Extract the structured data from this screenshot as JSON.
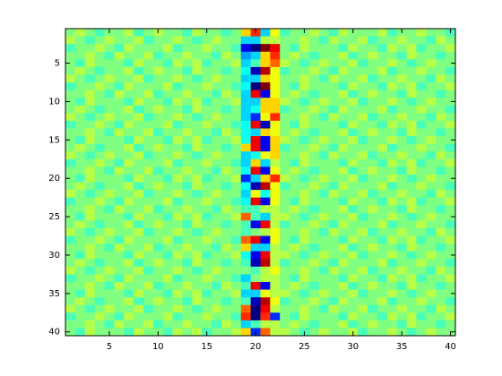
{
  "chart_data": {
    "type": "heatmap",
    "colormap": "jet",
    "zlim": [
      -9,
      9
    ],
    "xlim": [
      0.5,
      40.5
    ],
    "ylim": [
      0.5,
      40.5
    ],
    "y_reversed": true,
    "xticks": [
      5,
      10,
      15,
      20,
      25,
      30,
      35,
      40
    ],
    "yticks": [
      5,
      10,
      15,
      20,
      25,
      30,
      35,
      40
    ],
    "z": [
      [
        0,
        1,
        0,
        -1,
        0,
        0,
        1,
        -1,
        0,
        1,
        0,
        0,
        -1,
        1,
        0,
        0,
        -1,
        0,
        3,
        6,
        -3,
        2,
        -1,
        0,
        0,
        1,
        0,
        -1,
        1,
        0,
        0,
        0,
        1,
        -1,
        0,
        0,
        1,
        0,
        0,
        -1
      ],
      [
        1,
        0,
        -1,
        0,
        1,
        0,
        0,
        1,
        -1,
        0,
        0,
        1,
        0,
        -1,
        0,
        1,
        0,
        0,
        -3,
        -3,
        1,
        1,
        0,
        0,
        1,
        0,
        -1,
        1,
        0,
        0,
        1,
        -1,
        0,
        0,
        1,
        0,
        0,
        -1,
        1,
        0
      ],
      [
        -1,
        0,
        0,
        1,
        0,
        -1,
        1,
        0,
        0,
        0,
        1,
        -1,
        0,
        0,
        1,
        0,
        0,
        -1,
        -7,
        -9,
        9,
        7,
        0,
        -1,
        1,
        0,
        0,
        0,
        -1,
        1,
        0,
        0,
        -1,
        1,
        0,
        1,
        -1,
        0,
        0,
        1
      ],
      [
        0,
        0,
        1,
        0,
        -1,
        1,
        0,
        0,
        1,
        -1,
        0,
        0,
        1,
        0,
        0,
        -1,
        1,
        0,
        -4,
        -3,
        3,
        6,
        0,
        1,
        0,
        -1,
        0,
        0,
        1,
        -1,
        0,
        1,
        0,
        0,
        -1,
        1,
        0,
        0,
        -1,
        0
      ],
      [
        0,
        -1,
        1,
        0,
        0,
        0,
        -1,
        1,
        0,
        0,
        -1,
        1,
        0,
        1,
        -1,
        0,
        0,
        1,
        -3,
        -1,
        3,
        5,
        1,
        0,
        -1,
        0,
        1,
        0,
        0,
        1,
        -1,
        0,
        0,
        1,
        0,
        -1,
        0,
        1,
        0,
        0
      ],
      [
        0,
        1,
        0,
        -1,
        0,
        0,
        1,
        -1,
        0,
        1,
        0,
        0,
        -1,
        1,
        0,
        0,
        -1,
        0,
        -2,
        -8,
        8,
        2,
        -1,
        0,
        0,
        1,
        0,
        -1,
        1,
        0,
        0,
        0,
        1,
        -1,
        0,
        0,
        1,
        0,
        0,
        -1
      ],
      [
        1,
        0,
        -1,
        0,
        1,
        0,
        0,
        1,
        -1,
        0,
        0,
        1,
        0,
        -1,
        0,
        1,
        0,
        0,
        -3,
        -3,
        3,
        2,
        0,
        0,
        1,
        0,
        -1,
        1,
        0,
        0,
        1,
        -1,
        0,
        0,
        1,
        0,
        0,
        -1,
        1,
        0
      ],
      [
        -1,
        0,
        0,
        1,
        0,
        -1,
        1,
        0,
        0,
        0,
        1,
        -1,
        0,
        0,
        1,
        0,
        0,
        -1,
        -2,
        -9,
        9,
        2,
        0,
        -1,
        1,
        0,
        0,
        0,
        -1,
        1,
        0,
        0,
        -1,
        1,
        0,
        1,
        -1,
        0,
        0,
        1
      ],
      [
        0,
        0,
        1,
        0,
        -1,
        1,
        0,
        0,
        1,
        -1,
        0,
        0,
        1,
        0,
        0,
        -1,
        1,
        0,
        -3,
        7,
        -7,
        2,
        0,
        1,
        0,
        -1,
        0,
        0,
        1,
        -1,
        0,
        1,
        0,
        0,
        -1,
        1,
        0,
        0,
        -1,
        0
      ],
      [
        0,
        -1,
        1,
        0,
        0,
        0,
        -1,
        1,
        0,
        0,
        -1,
        1,
        0,
        1,
        -1,
        0,
        0,
        1,
        -3,
        -3,
        3,
        3,
        1,
        0,
        -1,
        0,
        1,
        0,
        0,
        1,
        -1,
        0,
        0,
        1,
        0,
        -1,
        0,
        1,
        0,
        0
      ],
      [
        0,
        1,
        0,
        -1,
        0,
        0,
        1,
        -1,
        0,
        1,
        0,
        0,
        -1,
        1,
        0,
        0,
        -1,
        0,
        -3,
        -2,
        3,
        3,
        -1,
        0,
        0,
        1,
        0,
        -1,
        1,
        0,
        0,
        0,
        1,
        -1,
        0,
        0,
        1,
        0,
        0,
        -1
      ],
      [
        1,
        0,
        -1,
        0,
        1,
        0,
        0,
        1,
        -1,
        0,
        0,
        1,
        0,
        -1,
        0,
        1,
        0,
        0,
        -3,
        -6,
        2,
        6,
        0,
        0,
        1,
        0,
        -1,
        1,
        0,
        0,
        1,
        -1,
        0,
        0,
        1,
        0,
        0,
        -1,
        1,
        0
      ],
      [
        -1,
        0,
        0,
        1,
        0,
        -1,
        1,
        0,
        0,
        0,
        1,
        -1,
        0,
        0,
        1,
        0,
        0,
        -1,
        -2,
        7,
        -8,
        2,
        0,
        -1,
        1,
        0,
        0,
        0,
        -1,
        1,
        0,
        0,
        -1,
        1,
        0,
        1,
        -1,
        0,
        0,
        1
      ],
      [
        0,
        0,
        1,
        0,
        -1,
        1,
        0,
        0,
        1,
        -1,
        0,
        0,
        1,
        0,
        0,
        -1,
        1,
        0,
        -2,
        -3,
        3,
        2,
        0,
        1,
        0,
        -1,
        0,
        0,
        1,
        -1,
        0,
        1,
        0,
        0,
        -1,
        1,
        0,
        0,
        -1,
        0
      ],
      [
        0,
        -1,
        1,
        0,
        0,
        0,
        -1,
        1,
        0,
        0,
        -1,
        1,
        0,
        1,
        -1,
        0,
        0,
        1,
        -2,
        7,
        -7,
        3,
        1,
        0,
        -1,
        0,
        1,
        0,
        0,
        1,
        -1,
        0,
        0,
        1,
        0,
        -1,
        0,
        1,
        0,
        0
      ],
      [
        0,
        1,
        0,
        -1,
        0,
        0,
        1,
        -1,
        0,
        1,
        0,
        0,
        -1,
        1,
        0,
        0,
        -1,
        0,
        3,
        7,
        -7,
        3,
        -1,
        0,
        0,
        1,
        0,
        -1,
        1,
        0,
        0,
        0,
        1,
        -1,
        0,
        0,
        1,
        0,
        0,
        -1
      ],
      [
        1,
        0,
        -1,
        0,
        1,
        0,
        0,
        1,
        -1,
        0,
        0,
        1,
        0,
        -1,
        0,
        1,
        0,
        0,
        -3,
        -2,
        2,
        3,
        0,
        0,
        1,
        0,
        -1,
        1,
        0,
        0,
        1,
        -1,
        0,
        0,
        1,
        0,
        0,
        -1,
        1,
        0
      ],
      [
        -1,
        0,
        0,
        1,
        0,
        -1,
        1,
        0,
        0,
        0,
        1,
        -1,
        0,
        0,
        1,
        0,
        0,
        -1,
        -3,
        3,
        -3,
        1,
        0,
        -1,
        1,
        0,
        0,
        0,
        -1,
        1,
        0,
        0,
        -1,
        1,
        0,
        1,
        -1,
        0,
        0,
        1
      ],
      [
        0,
        0,
        1,
        0,
        -1,
        1,
        0,
        0,
        1,
        -1,
        0,
        0,
        1,
        0,
        0,
        -1,
        1,
        0,
        -2,
        7,
        -7,
        2,
        0,
        1,
        0,
        -1,
        0,
        0,
        1,
        -1,
        0,
        1,
        0,
        0,
        -1,
        1,
        0,
        0,
        -1,
        0
      ],
      [
        0,
        -1,
        1,
        0,
        0,
        0,
        -1,
        1,
        0,
        0,
        -1,
        1,
        0,
        1,
        -1,
        0,
        0,
        1,
        -6,
        -3,
        3,
        6,
        1,
        0,
        -1,
        0,
        1,
        0,
        0,
        1,
        -1,
        0,
        0,
        1,
        0,
        -1,
        0,
        1,
        0,
        0
      ],
      [
        0,
        1,
        0,
        -1,
        0,
        0,
        1,
        -1,
        0,
        1,
        0,
        0,
        -1,
        1,
        0,
        0,
        -1,
        0,
        -2,
        -8,
        8,
        2,
        -1,
        0,
        0,
        1,
        0,
        -1,
        1,
        0,
        0,
        0,
        1,
        -1,
        0,
        0,
        1,
        0,
        0,
        -1
      ],
      [
        1,
        0,
        -1,
        0,
        1,
        0,
        0,
        1,
        -1,
        0,
        0,
        1,
        0,
        -1,
        0,
        1,
        0,
        0,
        -3,
        2,
        -2,
        2,
        0,
        0,
        1,
        0,
        -1,
        1,
        0,
        0,
        1,
        -1,
        0,
        0,
        1,
        0,
        0,
        -1,
        1,
        0
      ],
      [
        -1,
        0,
        0,
        1,
        0,
        -1,
        1,
        0,
        0,
        0,
        1,
        -1,
        0,
        0,
        1,
        0,
        0,
        -1,
        -2,
        7,
        -7,
        2,
        0,
        -1,
        1,
        0,
        0,
        0,
        -1,
        1,
        0,
        0,
        -1,
        1,
        0,
        1,
        -1,
        0,
        0,
        1
      ],
      [
        0,
        0,
        1,
        0,
        -1,
        1,
        0,
        0,
        1,
        -1,
        0,
        0,
        1,
        0,
        0,
        -1,
        1,
        0,
        -1,
        -1,
        1,
        1,
        0,
        1,
        0,
        -1,
        0,
        0,
        1,
        -1,
        0,
        1,
        0,
        0,
        -1,
        1,
        0,
        0,
        -1,
        0
      ],
      [
        0,
        -1,
        1,
        0,
        0,
        0,
        -1,
        1,
        0,
        0,
        -1,
        1,
        0,
        1,
        -1,
        0,
        0,
        1,
        5,
        -1,
        -3,
        1,
        1,
        0,
        -1,
        0,
        1,
        0,
        0,
        1,
        -1,
        0,
        0,
        1,
        0,
        -1,
        0,
        1,
        0,
        0
      ],
      [
        0,
        1,
        0,
        -1,
        0,
        0,
        1,
        -1,
        0,
        1,
        0,
        0,
        -1,
        1,
        0,
        0,
        -1,
        0,
        -1,
        -7,
        7,
        1,
        -1,
        0,
        0,
        1,
        0,
        -1,
        1,
        0,
        0,
        0,
        1,
        -1,
        0,
        0,
        1,
        0,
        0,
        -1
      ],
      [
        1,
        0,
        -1,
        0,
        1,
        0,
        0,
        1,
        -1,
        0,
        0,
        1,
        0,
        -1,
        0,
        1,
        0,
        0,
        -1,
        0,
        1,
        2,
        0,
        0,
        1,
        0,
        -1,
        1,
        0,
        0,
        1,
        -1,
        0,
        0,
        1,
        0,
        0,
        -1,
        1,
        0
      ],
      [
        -1,
        0,
        0,
        1,
        0,
        -1,
        1,
        0,
        0,
        0,
        1,
        -1,
        0,
        0,
        1,
        0,
        0,
        -1,
        5,
        7,
        -7,
        2,
        0,
        -1,
        1,
        0,
        0,
        0,
        -1,
        1,
        0,
        0,
        -1,
        1,
        0,
        1,
        -1,
        0,
        0,
        1
      ],
      [
        0,
        0,
        1,
        0,
        -1,
        1,
        0,
        0,
        1,
        -1,
        0,
        0,
        1,
        0,
        0,
        -1,
        1,
        0,
        3,
        -3,
        -3,
        1,
        0,
        1,
        0,
        -1,
        0,
        0,
        1,
        -1,
        0,
        1,
        0,
        0,
        -1,
        1,
        0,
        0,
        -1,
        0
      ],
      [
        0,
        -1,
        1,
        0,
        0,
        0,
        -1,
        1,
        0,
        0,
        -1,
        1,
        0,
        1,
        -1,
        0,
        0,
        1,
        -2,
        -7,
        7,
        1,
        1,
        0,
        -1,
        0,
        1,
        0,
        0,
        1,
        -1,
        0,
        0,
        1,
        0,
        -1,
        0,
        1,
        0,
        0
      ],
      [
        0,
        1,
        0,
        -1,
        0,
        0,
        1,
        -1,
        0,
        1,
        0,
        0,
        -1,
        1,
        0,
        0,
        -1,
        0,
        -1,
        -8,
        8,
        1,
        -1,
        0,
        0,
        1,
        0,
        -1,
        1,
        0,
        0,
        0,
        1,
        -1,
        0,
        0,
        1,
        0,
        0,
        -1
      ],
      [
        1,
        0,
        -1,
        0,
        1,
        0,
        0,
        1,
        -1,
        0,
        0,
        1,
        0,
        -1,
        0,
        1,
        0,
        0,
        0,
        -1,
        1,
        2,
        0,
        0,
        1,
        0,
        -1,
        1,
        0,
        0,
        1,
        -1,
        0,
        0,
        1,
        0,
        0,
        -1,
        1,
        0
      ],
      [
        -1,
        0,
        0,
        1,
        0,
        -1,
        1,
        0,
        0,
        0,
        1,
        -1,
        0,
        0,
        1,
        0,
        0,
        -1,
        -3,
        0,
        1,
        1,
        0,
        -1,
        1,
        0,
        0,
        0,
        -1,
        1,
        0,
        0,
        -1,
        1,
        0,
        1,
        -1,
        0,
        0,
        1
      ],
      [
        0,
        0,
        1,
        0,
        -1,
        1,
        0,
        0,
        1,
        -1,
        0,
        0,
        1,
        0,
        0,
        -1,
        1,
        0,
        -1,
        7,
        -7,
        1,
        0,
        1,
        0,
        -1,
        0,
        0,
        1,
        -1,
        0,
        1,
        0,
        0,
        -1,
        1,
        0,
        0,
        -1,
        0
      ],
      [
        0,
        -1,
        1,
        0,
        0,
        0,
        -1,
        1,
        0,
        0,
        -1,
        1,
        0,
        1,
        -1,
        0,
        0,
        1,
        -3,
        -3,
        2,
        1,
        1,
        0,
        -1,
        0,
        1,
        0,
        0,
        1,
        -1,
        0,
        0,
        1,
        0,
        -1,
        0,
        1,
        0,
        0
      ],
      [
        0,
        1,
        0,
        -1,
        0,
        0,
        1,
        -1,
        0,
        1,
        0,
        0,
        -1,
        1,
        0,
        0,
        -1,
        0,
        -1,
        -8,
        8,
        2,
        -1,
        0,
        0,
        1,
        0,
        -1,
        1,
        0,
        0,
        0,
        1,
        -1,
        0,
        0,
        1,
        0,
        0,
        -1
      ],
      [
        1,
        0,
        -1,
        0,
        1,
        0,
        0,
        1,
        -1,
        0,
        0,
        1,
        0,
        -1,
        0,
        1,
        0,
        0,
        5,
        -9,
        7,
        1,
        0,
        0,
        1,
        0,
        -1,
        1,
        0,
        0,
        1,
        -1,
        0,
        0,
        1,
        0,
        0,
        -1,
        1,
        0
      ],
      [
        -1,
        0,
        0,
        1,
        0,
        -1,
        1,
        0,
        0,
        0,
        1,
        -1,
        0,
        0,
        1,
        0,
        0,
        -1,
        6,
        -9,
        6,
        -6,
        0,
        -1,
        1,
        0,
        0,
        0,
        -1,
        1,
        0,
        0,
        -1,
        1,
        0,
        1,
        -1,
        0,
        0,
        1
      ],
      [
        0,
        0,
        1,
        0,
        -1,
        1,
        0,
        0,
        1,
        -1,
        0,
        0,
        1,
        0,
        0,
        -1,
        1,
        0,
        -3,
        -1,
        1,
        1,
        0,
        1,
        0,
        -1,
        0,
        0,
        1,
        -1,
        0,
        1,
        0,
        0,
        -1,
        1,
        0,
        0,
        -1,
        0
      ],
      [
        0,
        -1,
        1,
        0,
        0,
        0,
        -1,
        1,
        0,
        0,
        -1,
        1,
        0,
        1,
        -1,
        0,
        0,
        1,
        3,
        -6,
        5,
        1,
        1,
        0,
        -1,
        0,
        1,
        0,
        0,
        1,
        -1,
        0,
        0,
        1,
        0,
        -1,
        0,
        1,
        0,
        0
      ]
    ]
  }
}
